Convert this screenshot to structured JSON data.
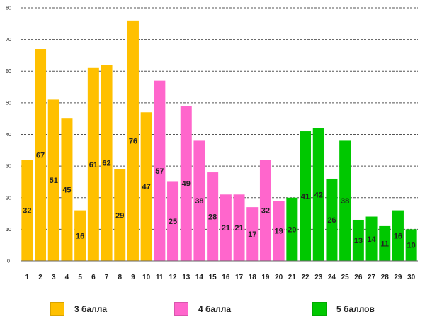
{
  "chart_data": {
    "type": "bar",
    "title": "",
    "xlabel": "",
    "ylabel": "",
    "ylim": [
      0,
      80
    ],
    "yticks": [
      0,
      10,
      20,
      30,
      40,
      50,
      60,
      70,
      80
    ],
    "grid": true,
    "categories": [
      "1",
      "2",
      "3",
      "4",
      "5",
      "6",
      "7",
      "8",
      "9",
      "10",
      "11",
      "12",
      "13",
      "14",
      "15",
      "16",
      "17",
      "18",
      "19",
      "20",
      "21",
      "22",
      "23",
      "24",
      "25",
      "26",
      "27",
      "28",
      "29",
      "30"
    ],
    "values": [
      32,
      67,
      51,
      45,
      16,
      61,
      62,
      29,
      76,
      47,
      57,
      25,
      49,
      38,
      28,
      21,
      21,
      17,
      32,
      19,
      20,
      41,
      42,
      26,
      38,
      13,
      14,
      11,
      16,
      10
    ],
    "series": [
      {
        "name": "3 балла",
        "color": "#FFC000",
        "start": 1,
        "end": 10
      },
      {
        "name": "4 балла",
        "color": "#FF66CC",
        "start": 11,
        "end": 20
      },
      {
        "name": "5 баллов",
        "color": "#00C800",
        "start": 21,
        "end": 30
      }
    ],
    "legend_position": "bottom"
  },
  "legend": {
    "item1": "3 балла",
    "item2": "4 балла",
    "item3": "5 баллов"
  }
}
